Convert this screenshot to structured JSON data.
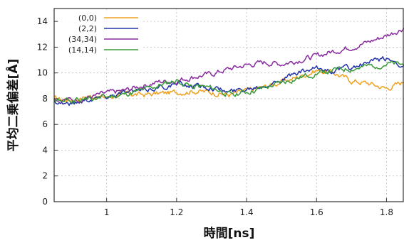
{
  "chart_data": {
    "type": "line",
    "xlabel": "時間[ns]",
    "ylabel": "平均二乗偏差[Å]",
    "xlim": [
      0.85,
      1.85
    ],
    "ylim": [
      0,
      15
    ],
    "x_ticks": [
      1,
      1.2,
      1.4,
      1.6,
      1.8
    ],
    "x_tick_labels": [
      "1",
      "1.2",
      "1.4",
      "1.6",
      "1.8"
    ],
    "y_ticks": [
      0,
      2,
      4,
      6,
      8,
      10,
      12,
      14
    ],
    "y_tick_labels": [
      "0",
      "2",
      "4",
      "6",
      "8",
      "10",
      "12",
      "14"
    ],
    "grid": true,
    "legend_position": "top-left",
    "x": [
      0.85,
      0.9,
      0.95,
      1.0,
      1.05,
      1.1,
      1.15,
      1.2,
      1.25,
      1.3,
      1.35,
      1.4,
      1.45,
      1.5,
      1.55,
      1.6,
      1.65,
      1.7,
      1.75,
      1.8,
      1.85
    ],
    "series": [
      {
        "name": "(0,0)",
        "color": "#f0a020",
        "values": [
          8.0,
          7.9,
          8.2,
          8.1,
          8.4,
          8.3,
          8.4,
          8.5,
          8.6,
          8.5,
          8.3,
          8.6,
          8.9,
          9.3,
          9.7,
          10.2,
          10.0,
          9.4,
          9.2,
          8.8,
          9.3
        ]
      },
      {
        "name": "(2,2)",
        "color": "#2233aa",
        "values": [
          7.8,
          7.6,
          8.0,
          8.2,
          8.5,
          8.6,
          8.9,
          9.1,
          9.0,
          8.9,
          8.5,
          8.8,
          9.1,
          9.5,
          10.0,
          10.3,
          10.2,
          10.4,
          10.8,
          11.1,
          10.6
        ]
      },
      {
        "name": "(34,34)",
        "color": "#8a2aa0",
        "values": [
          8.0,
          7.9,
          8.1,
          8.4,
          8.6,
          9.0,
          9.3,
          9.4,
          9.7,
          9.9,
          10.3,
          10.6,
          10.8,
          10.7,
          11.0,
          11.3,
          11.7,
          12.0,
          12.4,
          12.9,
          13.5
        ]
      },
      {
        "name": "(14,14)",
        "color": "#3a9a3a",
        "values": [
          7.9,
          7.8,
          8.0,
          8.1,
          8.3,
          8.6,
          9.0,
          9.4,
          9.0,
          8.8,
          8.4,
          8.5,
          8.8,
          9.2,
          9.6,
          10.0,
          10.2,
          10.3,
          10.5,
          10.7,
          10.6
        ]
      }
    ]
  }
}
